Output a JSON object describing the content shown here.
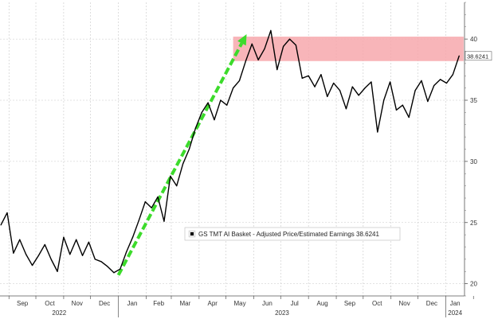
{
  "chart_data": {
    "type": "line",
    "title": "",
    "xlabel": "",
    "ylabel": "",
    "ylim": [
      19,
      43
    ],
    "yticks": [
      20,
      25,
      30,
      35,
      40
    ],
    "grid": true,
    "x_month_labels": [
      "Sep",
      "Oct",
      "Nov",
      "Dec",
      "Jan",
      "Feb",
      "Mar",
      "Apr",
      "May",
      "Jun",
      "Jul",
      "Aug",
      "Sep",
      "Oct",
      "Nov",
      "Dec",
      "Jan"
    ],
    "year_labels": [
      "2022",
      "2023",
      "2024"
    ],
    "legend": {
      "placement": "lower-right",
      "text": "GS TMT AI Basket - Adjusted Price/Estimated Earnings 38.6241"
    },
    "last_value_label": "38.6241",
    "series": [
      {
        "name": "GS TMT AI Basket - Adjusted Price/Estimated Earnings",
        "color": "#000000",
        "x": [
          "2022-08-23",
          "2022-08-30",
          "2022-09-06",
          "2022-09-13",
          "2022-09-20",
          "2022-09-27",
          "2022-10-04",
          "2022-10-11",
          "2022-10-18",
          "2022-10-25",
          "2022-11-01",
          "2022-11-08",
          "2022-11-15",
          "2022-11-22",
          "2022-11-29",
          "2022-12-06",
          "2022-12-13",
          "2022-12-20",
          "2022-12-27",
          "2023-01-03",
          "2023-01-10",
          "2023-01-17",
          "2023-01-24",
          "2023-01-31",
          "2023-02-07",
          "2023-02-14",
          "2023-02-21",
          "2023-02-28",
          "2023-03-07",
          "2023-03-14",
          "2023-03-21",
          "2023-03-28",
          "2023-04-04",
          "2023-04-11",
          "2023-04-18",
          "2023-04-25",
          "2023-05-02",
          "2023-05-09",
          "2023-05-16",
          "2023-05-23",
          "2023-05-30",
          "2023-06-06",
          "2023-06-13",
          "2023-06-20",
          "2023-06-27",
          "2023-07-04",
          "2023-07-11",
          "2023-07-18",
          "2023-07-25",
          "2023-08-01",
          "2023-08-08",
          "2023-08-15",
          "2023-08-22",
          "2023-08-29",
          "2023-09-05",
          "2023-09-12",
          "2023-09-19",
          "2023-09-26",
          "2023-10-03",
          "2023-10-10",
          "2023-10-17",
          "2023-10-24",
          "2023-10-31",
          "2023-11-07",
          "2023-11-14",
          "2023-11-21",
          "2023-11-28",
          "2023-12-05",
          "2023-12-12",
          "2023-12-19",
          "2023-12-26",
          "2024-01-02",
          "2024-01-09",
          "2024-01-16"
        ],
        "values": [
          24.8,
          25.8,
          22.5,
          23.6,
          22.4,
          21.5,
          22.3,
          23.2,
          22.0,
          21.0,
          23.8,
          22.4,
          23.6,
          22.3,
          23.4,
          22.0,
          21.8,
          21.4,
          20.9,
          21.2,
          22.6,
          23.8,
          25.2,
          26.7,
          26.2,
          27.1,
          25.1,
          28.8,
          28.0,
          29.8,
          31.0,
          32.7,
          34.0,
          34.8,
          33.4,
          35.0,
          34.6,
          36.0,
          36.6,
          38.2,
          39.6,
          38.3,
          39.2,
          40.7,
          37.5,
          39.4,
          40.0,
          39.5,
          36.8,
          37.0,
          36.1,
          37.1,
          35.3,
          36.4,
          35.8,
          34.3,
          36.1,
          35.4,
          36.0,
          36.5,
          32.4,
          35.0,
          36.5,
          34.2,
          34.6,
          33.6,
          35.8,
          36.6,
          34.9,
          36.2,
          36.7,
          36.4,
          37.1,
          38.6241
        ]
      }
    ],
    "annotations": [
      {
        "type": "arrow",
        "color": "#3cdb2b",
        "style": "dashed",
        "from": {
          "x": "2023-01-01",
          "y": 20.7
        },
        "to": {
          "x": "2023-05-24",
          "y": 40.4
        }
      },
      {
        "type": "shaded-band",
        "color": "#f7a8ad",
        "x_from": "2023-05-09",
        "x_to": "2024-01-21",
        "y_from": 38.2,
        "y_to": 40.2
      }
    ]
  }
}
